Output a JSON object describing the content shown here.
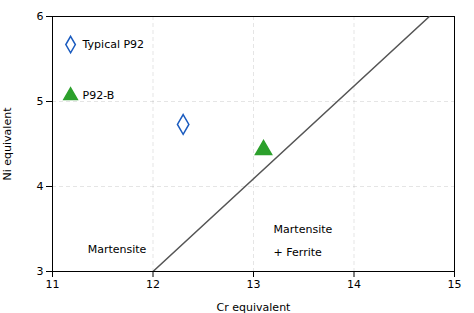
{
  "chart_data": {
    "type": "scatter",
    "xlabel": "Cr equivalent",
    "ylabel": "Ni equivalent",
    "xlim": [
      11,
      15
    ],
    "ylim": [
      3,
      6
    ],
    "xticks": [
      11,
      12,
      13,
      14,
      15
    ],
    "yticks": [
      3,
      4,
      5,
      6
    ],
    "grid": true,
    "legend": "upper left",
    "series": [
      {
        "type": "line",
        "color": "#555555",
        "x": [
          12.0,
          14.75
        ],
        "values": [
          3.0,
          6.0
        ]
      },
      {
        "name": "Typical P92",
        "color": "#1a5bbf",
        "marker": "diamond-open",
        "x": [
          12.3
        ],
        "values": [
          4.73
        ]
      },
      {
        "name": "P92-B",
        "color": "#2ca02c",
        "marker": "triangle",
        "x": [
          13.1
        ],
        "values": [
          4.43
        ]
      }
    ],
    "annotations": [
      {
        "text": "Martensite",
        "x": 11.35,
        "y": 3.22
      },
      {
        "text": "Martensite",
        "x": 13.2,
        "y": 3.45
      },
      {
        "text": "+ Ferrite",
        "x": 13.2,
        "y": 3.18
      }
    ]
  }
}
